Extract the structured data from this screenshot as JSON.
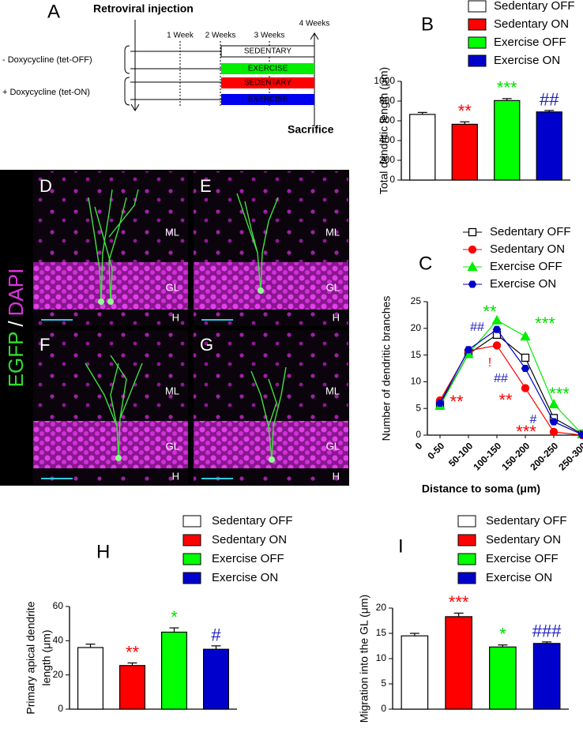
{
  "panel_a": {
    "label": "A",
    "injection": "Retroviral injection",
    "weeks": [
      "1 Week",
      "2 Weeks",
      "3 Weeks",
      "4 Weeks"
    ],
    "groups": [
      "- Doxycycline (tet-OFF)",
      "+ Doxycycline (tet-ON)"
    ],
    "boxes": [
      "SEDENTARY",
      "EXERCISE",
      "SEDENTARY",
      "EXERCISE"
    ],
    "sacrifice": "Sacrifice"
  },
  "images": {
    "stain": [
      "EGFP",
      "/",
      "DAPI"
    ],
    "panels": [
      {
        "label": "D",
        "layers": [
          "ML",
          "GL",
          "H"
        ]
      },
      {
        "label": "E",
        "layers": [
          "ML",
          "GL",
          "H"
        ]
      },
      {
        "label": "F",
        "layers": [
          "ML",
          "GL",
          "H"
        ]
      },
      {
        "label": "G",
        "layers": [
          "ML",
          "GL",
          "H"
        ]
      }
    ]
  },
  "chart_data": [
    {
      "type": "bar",
      "panel_label": "B",
      "y_label": "Total dendritic length  (μm)",
      "categories": [
        "Sedentary OFF",
        "Sedentary ON",
        "Exercise OFF",
        "Exercise ON"
      ],
      "values": [
        665,
        565,
        805,
        690
      ],
      "errors": [
        20,
        25,
        20,
        15
      ],
      "colors": [
        "#ffffff",
        "#ff0000",
        "#00ff00",
        "#0000cc"
      ],
      "ylim": [
        0,
        1000
      ],
      "yticks": [
        0,
        200,
        400,
        600,
        800,
        1000
      ],
      "annotations": [
        {
          "text": "**",
          "color": "#ff0000"
        },
        {
          "text": "***",
          "color": "#00dd00"
        },
        {
          "text": "##",
          "color": "#2020c0"
        }
      ]
    },
    {
      "type": "line",
      "panel_label": "C",
      "y_label": "Number of dendritic branches",
      "x_label": "Distance to soma (μm)",
      "x_origin_label": "0",
      "categories": [
        "0-50",
        "50-100",
        "100-150",
        "150-200",
        "200-250",
        "250-300"
      ],
      "series": [
        {
          "name": "Sedentary OFF",
          "color": "#000000",
          "marker": "square",
          "values": [
            5.8,
            15.2,
            18.8,
            14.5,
            3.2,
            0.2
          ]
        },
        {
          "name": "Sedentary ON",
          "color": "#ff0000",
          "marker": "circle",
          "values": [
            6.5,
            15.8,
            16.8,
            8.8,
            0.6,
            0
          ]
        },
        {
          "name": "Exercise OFF",
          "color": "#00ee00",
          "marker": "triangle",
          "values": [
            5.5,
            15.2,
            21.5,
            18.5,
            5.8,
            0.2
          ]
        },
        {
          "name": "Exercise ON",
          "color": "#0000cc",
          "marker": "hexagon",
          "values": [
            6.0,
            16.0,
            19.8,
            12.5,
            2.5,
            0.1
          ]
        }
      ],
      "ylim": [
        0,
        25
      ],
      "yticks": [
        0,
        5,
        10,
        15,
        20,
        25
      ],
      "annotations": [
        {
          "text": "**",
          "color": "#ff0000"
        },
        {
          "text": "**",
          "color": "#00dd00"
        },
        {
          "text": "##",
          "color": "#2020c0"
        },
        {
          "text": "!",
          "color": "#ff0000"
        },
        {
          "text": "##",
          "color": "#2020c0"
        },
        {
          "text": "**",
          "color": "#ff0000"
        },
        {
          "text": "***",
          "color": "#00dd00"
        },
        {
          "text": "#",
          "color": "#2020c0"
        },
        {
          "text": "***",
          "color": "#ff0000"
        },
        {
          "text": "***",
          "color": "#00dd00"
        }
      ]
    },
    {
      "type": "bar",
      "panel_label": "H",
      "y_label": [
        "Primary apical dendrite",
        "length  (μm)"
      ],
      "categories": [
        "Sedentary OFF",
        "Sedentary ON",
        "Exercise OFF",
        "Exercise ON"
      ],
      "values": [
        36,
        25.5,
        45,
        35
      ],
      "errors": [
        2,
        1.5,
        2.5,
        2
      ],
      "colors": [
        "#ffffff",
        "#ff0000",
        "#00ff00",
        "#0000cc"
      ],
      "ylim": [
        0,
        60
      ],
      "yticks": [
        0,
        20,
        40,
        60
      ],
      "annotations": [
        {
          "text": "**",
          "color": "#ff0000"
        },
        {
          "text": "*",
          "color": "#00dd00"
        },
        {
          "text": "#",
          "color": "#2020c0"
        }
      ]
    },
    {
      "type": "bar",
      "panel_label": "I",
      "y_label": "Migration into the  GL  (μm)",
      "categories": [
        "Sedentary OFF",
        "Sedentary ON",
        "Exercise OFF",
        "Exercise ON"
      ],
      "values": [
        14.5,
        18.3,
        12.3,
        13.0
      ],
      "errors": [
        0.5,
        0.7,
        0.4,
        0.3
      ],
      "colors": [
        "#ffffff",
        "#ff0000",
        "#00ff00",
        "#0000cc"
      ],
      "ylim": [
        0,
        20
      ],
      "yticks": [
        0,
        5,
        10,
        15,
        20
      ],
      "annotations": [
        {
          "text": "***",
          "color": "#ff0000"
        },
        {
          "text": "*",
          "color": "#00dd00"
        },
        {
          "text": "###",
          "color": "#2020c0"
        }
      ]
    }
  ]
}
